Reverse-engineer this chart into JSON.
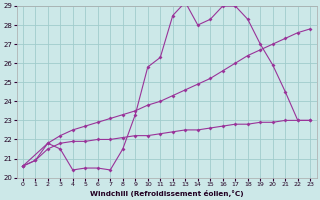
{
  "xlabel": "Windchill (Refroidissement éolien,°C)",
  "xlim": [
    -0.5,
    23.5
  ],
  "ylim": [
    20,
    29
  ],
  "yticks": [
    20,
    21,
    22,
    23,
    24,
    25,
    26,
    27,
    28,
    29
  ],
  "xticks": [
    0,
    1,
    2,
    3,
    4,
    5,
    6,
    7,
    8,
    9,
    10,
    11,
    12,
    13,
    14,
    15,
    16,
    17,
    18,
    19,
    20,
    21,
    22,
    23
  ],
  "bg_color": "#cce8e8",
  "grid_color": "#a0cccc",
  "line_color": "#993399",
  "line1_x": [
    0,
    1,
    2,
    3,
    4,
    5,
    6,
    7,
    8,
    9,
    10,
    11,
    12,
    13,
    14,
    15,
    16,
    17,
    18,
    19,
    20,
    21,
    22,
    23
  ],
  "line1_y": [
    20.6,
    20.9,
    21.8,
    21.5,
    20.4,
    20.5,
    20.5,
    20.4,
    21.5,
    23.3,
    25.8,
    26.3,
    28.5,
    29.2,
    28.0,
    28.3,
    29.0,
    29.0,
    28.3,
    27.0,
    25.9,
    24.5,
    23.0,
    23.0
  ],
  "line2_x": [
    0,
    2,
    3,
    4,
    5,
    6,
    7,
    8,
    9,
    10,
    11,
    12,
    13,
    14,
    15,
    16,
    17,
    18,
    19,
    20,
    21,
    22,
    23
  ],
  "line2_y": [
    20.6,
    21.8,
    22.2,
    22.5,
    22.7,
    22.9,
    23.1,
    23.3,
    23.5,
    23.8,
    24.0,
    24.3,
    24.6,
    24.9,
    25.2,
    25.6,
    26.0,
    26.4,
    26.7,
    27.0,
    27.3,
    27.6,
    27.8
  ],
  "line3_x": [
    0,
    1,
    2,
    3,
    4,
    5,
    6,
    7,
    8,
    9,
    10,
    11,
    12,
    13,
    14,
    15,
    16,
    17,
    18,
    19,
    20,
    21,
    22,
    23
  ],
  "line3_y": [
    20.6,
    20.9,
    21.5,
    21.8,
    21.9,
    21.9,
    22.0,
    22.0,
    22.1,
    22.2,
    22.2,
    22.3,
    22.4,
    22.5,
    22.5,
    22.6,
    22.7,
    22.8,
    22.8,
    22.9,
    22.9,
    23.0,
    23.0,
    23.0
  ]
}
